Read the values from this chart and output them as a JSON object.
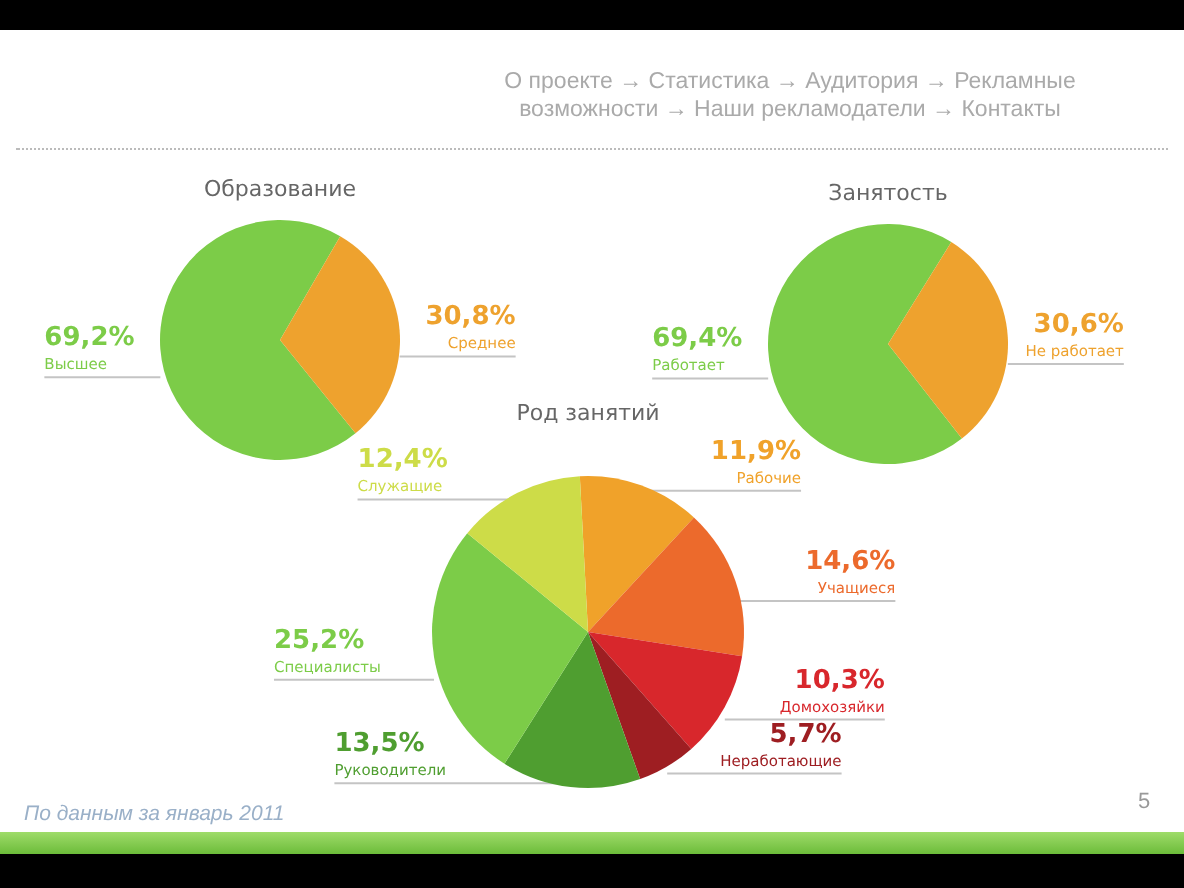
{
  "chart_data": [
    {
      "type": "pie",
      "title": "Образование",
      "categories": [
        "Высшее",
        "Среднее"
      ],
      "values": [
        69.2,
        30.8
      ],
      "value_labels": [
        "69,2%",
        "30,8%"
      ],
      "colors": [
        "#7ccc48",
        "#eea22e"
      ],
      "annotations": [
        "О проекте → Статистика → Аудитория → Рекламные возможности → Наши рекламодатели → Контакты"
      ]
    },
    {
      "type": "pie",
      "title": "Занятость",
      "categories": [
        "Работает",
        "Не работает"
      ],
      "values": [
        69.4,
        30.6
      ],
      "value_labels": [
        "69,4%",
        "30,6%"
      ],
      "colors": [
        "#7ccc48",
        "#eea22e"
      ]
    },
    {
      "type": "pie",
      "title": "Род занятий",
      "categories": [
        "Рабочие",
        "Учащиеся",
        "Домохозяйки",
        "Неработающие",
        "Руководители",
        "Специалисты",
        "Служащие"
      ],
      "values": [
        11.9,
        14.6,
        10.3,
        5.7,
        13.5,
        25.2,
        12.4
      ],
      "value_labels": [
        "11,9%",
        "14,6%",
        "10,3%",
        "5,7%",
        "13,5%",
        "25,2%",
        "12,4%"
      ],
      "colors": [
        "#f0a22a",
        "#ec6a2c",
        "#d8272c",
        "#9e1e22",
        "#4f9e30",
        "#7ccc48",
        "#cddc48"
      ],
      "annotations": [
        "По данным за январь 2011",
        "5"
      ]
    }
  ]
}
